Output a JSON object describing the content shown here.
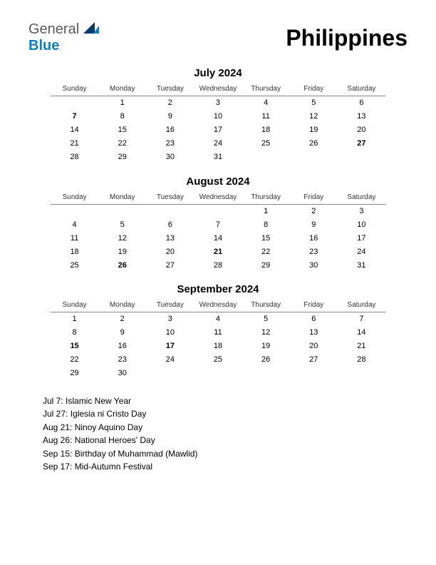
{
  "logo": {
    "general": "General",
    "blue": "Blue",
    "icon_color_dark": "#0a3a6b",
    "icon_color_accent": "#0b7dc2"
  },
  "country_title": "Philippines",
  "day_headers": [
    "Sunday",
    "Monday",
    "Tuesday",
    "Wednesday",
    "Thursday",
    "Friday",
    "Saturday"
  ],
  "background_color": "#ffffff",
  "holiday_color": "#cc0000",
  "text_color": "#000000",
  "header_border_color": "#888888",
  "months": [
    {
      "title": "July 2024",
      "weeks": [
        [
          null,
          1,
          2,
          3,
          4,
          5,
          6
        ],
        [
          7,
          8,
          9,
          10,
          11,
          12,
          13
        ],
        [
          14,
          15,
          16,
          17,
          18,
          19,
          20
        ],
        [
          21,
          22,
          23,
          24,
          25,
          26,
          27
        ],
        [
          28,
          29,
          30,
          31,
          null,
          null,
          null
        ]
      ],
      "holidays": [
        7,
        27
      ]
    },
    {
      "title": "August 2024",
      "weeks": [
        [
          null,
          null,
          null,
          null,
          1,
          2,
          3
        ],
        [
          4,
          5,
          6,
          7,
          8,
          9,
          10
        ],
        [
          11,
          12,
          13,
          14,
          15,
          16,
          17
        ],
        [
          18,
          19,
          20,
          21,
          22,
          23,
          24
        ],
        [
          25,
          26,
          27,
          28,
          29,
          30,
          31
        ]
      ],
      "holidays": [
        21,
        26
      ]
    },
    {
      "title": "September 2024",
      "weeks": [
        [
          1,
          2,
          3,
          4,
          5,
          6,
          7
        ],
        [
          8,
          9,
          10,
          11,
          12,
          13,
          14
        ],
        [
          15,
          16,
          17,
          18,
          19,
          20,
          21
        ],
        [
          22,
          23,
          24,
          25,
          26,
          27,
          28
        ],
        [
          29,
          30,
          null,
          null,
          null,
          null,
          null
        ]
      ],
      "holidays": [
        15,
        17
      ]
    }
  ],
  "holiday_list": [
    "Jul 7: Islamic New Year",
    "Jul 27: Iglesia ni Cristo Day",
    "Aug 21: Ninoy Aquino Day",
    "Aug 26: National Heroes' Day",
    "Sep 15: Birthday of Muhammad (Mawlid)",
    "Sep 17: Mid-Autumn Festival"
  ]
}
